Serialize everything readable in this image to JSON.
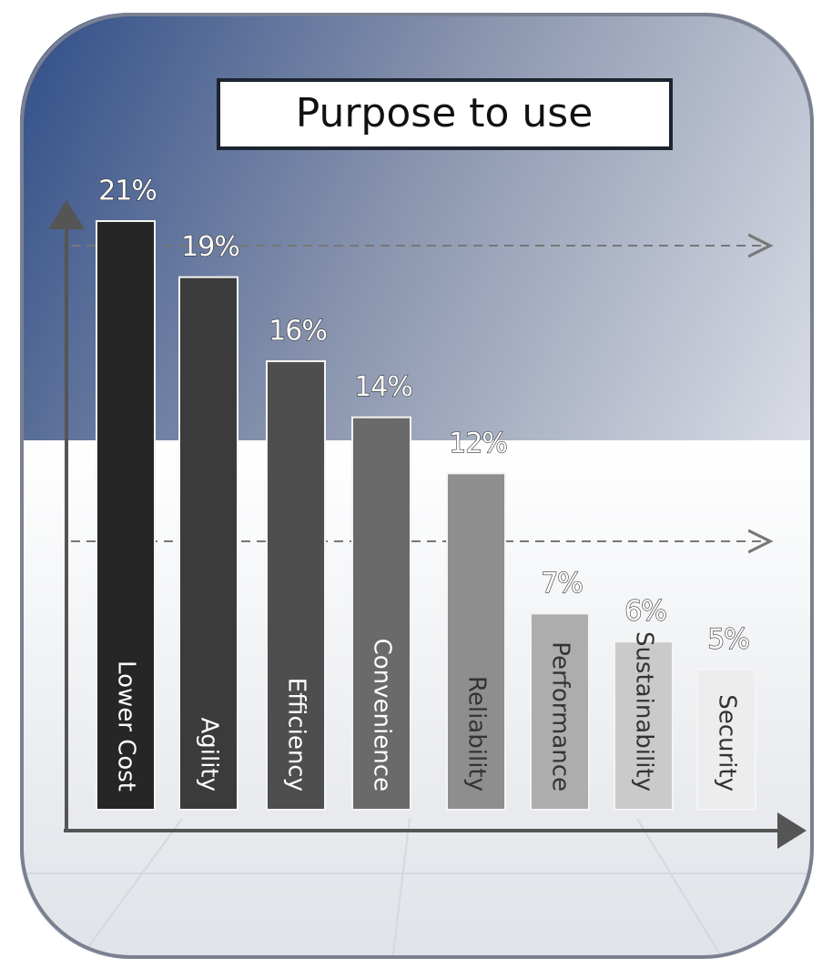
{
  "chart_data": {
    "type": "bar",
    "title": "Purpose to use",
    "categories": [
      "Lower Cost",
      "Agility",
      "Efficiency",
      "Convenience",
      "Reliability",
      "Performance",
      "Sustainability",
      "Security"
    ],
    "values": [
      21,
      19,
      16,
      14,
      12,
      7,
      6,
      5
    ],
    "value_labels": [
      "21%",
      "19%",
      "16%",
      "14%",
      "12%",
      "7%",
      "6%",
      "5%"
    ],
    "colors": [
      "#262626",
      "#3b3b3b",
      "#4e4e4e",
      "#6a6a6a",
      "#8e8e8e",
      "#adadad",
      "#cacaca",
      "#ededed"
    ]
  }
}
